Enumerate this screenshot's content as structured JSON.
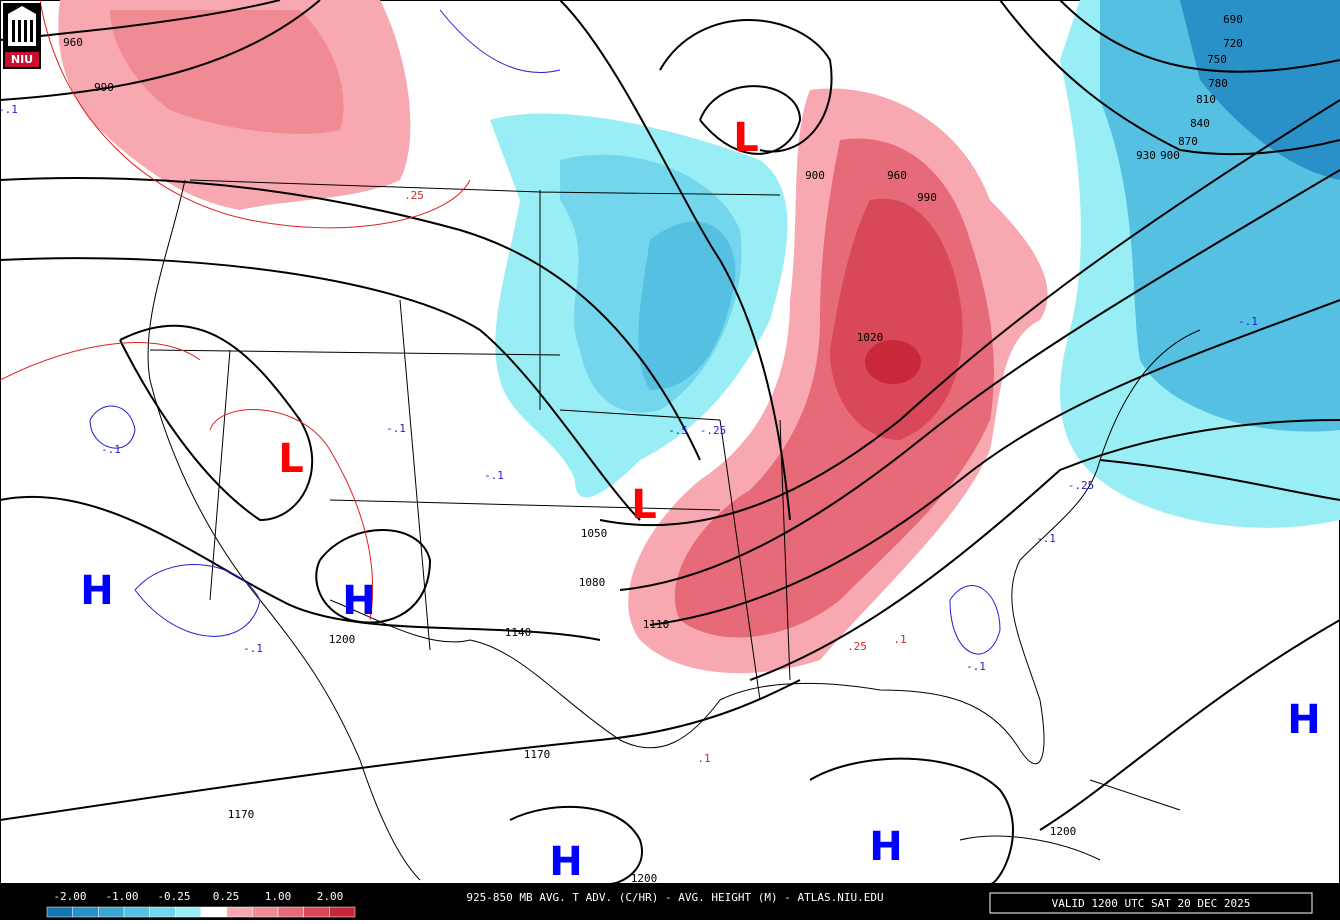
{
  "logo": "NIU",
  "pressure_centers": [
    {
      "label": "L",
      "color": "#ff0000"
    },
    {
      "label": "L",
      "color": "#ff0000"
    },
    {
      "label": "L",
      "color": "#ff0000"
    },
    {
      "label": "H",
      "color": "#0000ff"
    },
    {
      "label": "H",
      "color": "#0000ff"
    },
    {
      "label": "H",
      "color": "#0000ff"
    },
    {
      "label": "H",
      "color": "#0000ff"
    },
    {
      "label": "H",
      "color": "#0000ff"
    }
  ],
  "height_labels": [
    "960",
    "990",
    "900",
    "960",
    "990",
    "1020",
    "1050",
    "1080",
    "1110",
    "1140",
    "1170",
    "1170",
    "1200",
    "1200",
    "1200",
    "690",
    "720",
    "750",
    "780",
    "810",
    "840",
    "870",
    "930",
    "900"
  ],
  "advection_labels": [
    {
      "text": ".25",
      "sign": "warm"
    },
    {
      "text": "-.1",
      "sign": "cold"
    },
    {
      "text": "-.1",
      "sign": "cold"
    },
    {
      "text": "-.1",
      "sign": "cold"
    },
    {
      "text": "-.5",
      "sign": "cold"
    },
    {
      "text": "-.25",
      "sign": "cold"
    },
    {
      "text": "-.1",
      "sign": "cold"
    },
    {
      "text": "-.1",
      "sign": "cold"
    },
    {
      "text": "-.1",
      "sign": "cold"
    },
    {
      "text": "-.25",
      "sign": "cold"
    },
    {
      "text": "-.1",
      "sign": "cold"
    },
    {
      "text": ".25",
      "sign": "warm"
    },
    {
      "text": ".1",
      "sign": "warm"
    },
    {
      "text": ".1",
      "sign": "warm"
    },
    {
      "text": "-.1",
      "sign": "cold"
    }
  ],
  "legend": {
    "labels": [
      "-2.00",
      "-1.00",
      "-0.25",
      "0.25",
      "1.00",
      "2.00"
    ],
    "colors": [
      "#1478b4",
      "#2a90c8",
      "#3aa8d6",
      "#55c0e2",
      "#74d6ec",
      "#98eef4",
      "#ffffff",
      "#f8a8b0",
      "#f08a94",
      "#e66a78",
      "#d84858",
      "#c8283a"
    ]
  },
  "footer": {
    "title": "925-850 MB AVG. T ADV. (C/HR) - AVG. HEIGHT (M) - ATLAS.NIU.EDU",
    "valid": "VALID 1200 UTC SAT 20 DEC 2025"
  }
}
